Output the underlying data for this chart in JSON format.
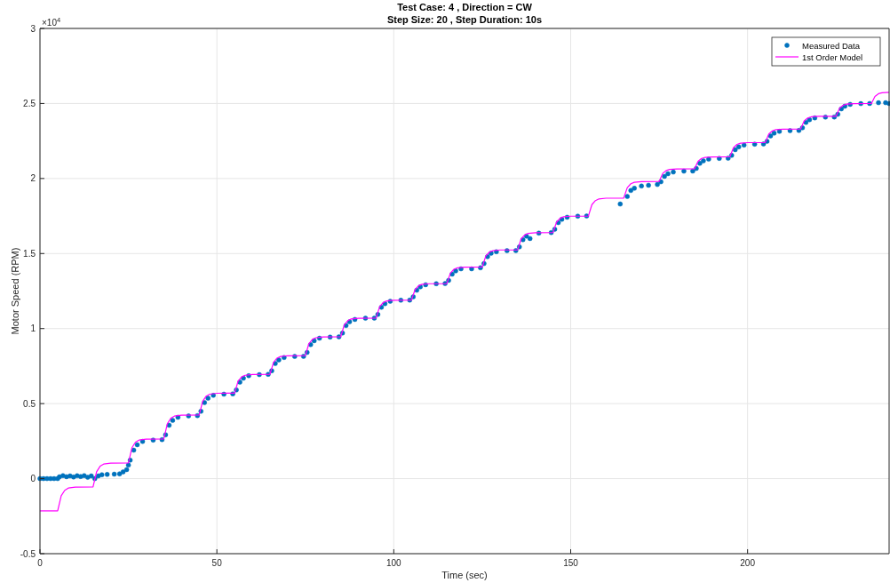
{
  "chart_data": {
    "type": "line",
    "title": "Test Case: 4 , Direction = CW",
    "subtitle": "Step Size: 20 , Step Duration: 10s",
    "xlabel": "Time (sec)",
    "ylabel": "Motor Speed (RPM)",
    "annotations": [
      "×10$^{4}$"
    ],
    "xlim": [
      0,
      240
    ],
    "xticks": [
      0,
      50,
      100,
      150,
      200
    ],
    "ylim": [
      -0.5,
      3
    ],
    "yticks": [
      -0.5,
      0,
      0.5,
      1,
      1.5,
      2,
      2.5,
      3
    ],
    "grid": true,
    "legend": "top right",
    "series": [
      {
        "name": "Measured Data",
        "type": "scatter",
        "marker": "circle",
        "color": "#0072bd",
        "x": [
          0,
          1,
          2,
          3,
          4,
          5,
          5.5,
          6.5,
          7.5,
          8.5,
          9.5,
          10.5,
          11.5,
          12.5,
          13.5,
          14.5,
          15.5,
          16.5,
          17.5,
          19,
          21,
          22.5,
          23.5,
          24.5,
          25,
          25.5,
          26.5,
          27.5,
          29,
          32,
          34.5,
          35.5,
          36.5,
          37.5,
          39,
          42,
          44.5,
          45.5,
          46.5,
          47.5,
          49,
          52,
          54.5,
          55.5,
          56.5,
          57.5,
          59,
          62,
          64.5,
          65.5,
          66.5,
          67.5,
          69,
          72,
          74.5,
          75.5,
          76.5,
          77.5,
          79,
          82,
          84.5,
          85.5,
          86.5,
          87.5,
          89,
          92,
          94.5,
          95.5,
          96.5,
          97.5,
          99,
          102,
          104.5,
          105.5,
          106.5,
          107.5,
          109,
          112,
          114.5,
          115.5,
          116.5,
          117.5,
          119,
          122,
          124.5,
          125.5,
          126.5,
          127.5,
          129,
          132,
          134.5,
          135.5,
          136.5,
          137.5,
          138.5,
          141,
          144.5,
          145.5,
          146.5,
          147.5,
          149,
          152,
          154.5,
          164,
          166,
          167,
          168,
          170,
          172,
          174.5,
          175.5,
          176.5,
          177.5,
          179,
          182,
          184.5,
          185.5,
          186.5,
          187.5,
          189,
          192,
          194.5,
          195.5,
          196.5,
          197.5,
          199,
          202,
          204.5,
          205.5,
          206.5,
          207.5,
          209,
          212,
          214.5,
          215.5,
          216.5,
          217.5,
          219,
          222,
          224.5,
          225.5,
          226.5,
          227.5,
          229,
          232,
          234.5,
          237,
          239,
          240
        ],
        "values": [
          0,
          0,
          0,
          0,
          0,
          0,
          0.012,
          0.02,
          0.013,
          0.018,
          0.011,
          0.019,
          0.014,
          0.02,
          0.009,
          0.018,
          0,
          0.018,
          0.026,
          0.028,
          0.03,
          0.032,
          0.045,
          0.06,
          0.09,
          0.123,
          0.19,
          0.226,
          0.248,
          0.257,
          0.26,
          0.292,
          0.356,
          0.388,
          0.409,
          0.418,
          0.42,
          0.449,
          0.507,
          0.536,
          0.555,
          0.563,
          0.565,
          0.591,
          0.643,
          0.669,
          0.686,
          0.693,
          0.695,
          0.719,
          0.767,
          0.791,
          0.807,
          0.814,
          0.815,
          0.841,
          0.893,
          0.919,
          0.936,
          0.943,
          0.945,
          0.97,
          1.02,
          1.045,
          1.061,
          1.069,
          1.07,
          1.094,
          1.142,
          1.166,
          1.182,
          1.189,
          1.19,
          1.212,
          1.256,
          1.278,
          1.292,
          1.299,
          1.3,
          1.321,
          1.363,
          1.384,
          1.398,
          1.398,
          1.405,
          1.433,
          1.479,
          1.502,
          1.512,
          1.519,
          1.52,
          1.544,
          1.592,
          1.616,
          1.6,
          1.636,
          1.64,
          1.662,
          1.706,
          1.728,
          1.742,
          1.749,
          1.75,
          1.83,
          1.88,
          1.92,
          1.935,
          1.95,
          1.955,
          1.96,
          1.978,
          2.014,
          2.032,
          2.043,
          2.049,
          2.05,
          2.067,
          2.101,
          2.118,
          2.129,
          2.134,
          2.135,
          2.154,
          2.192,
          2.211,
          2.223,
          2.229,
          2.23,
          2.248,
          2.284,
          2.302,
          2.314,
          2.319,
          2.32,
          2.338,
          2.374,
          2.392,
          2.404,
          2.409,
          2.41,
          2.428,
          2.464,
          2.482,
          2.494,
          2.499,
          2.5,
          2.505,
          2.505,
          2.5
        ]
      },
      {
        "name": "1st Order Model",
        "color": "#ff00ff",
        "x": [
          0,
          5,
          6,
          7,
          8,
          10,
          15,
          16,
          17,
          18,
          20,
          25,
          26,
          27,
          28,
          30,
          35,
          36,
          37,
          38,
          40,
          45,
          46,
          47,
          48,
          50,
          55,
          56,
          57,
          58,
          60,
          65,
          66,
          67,
          68,
          70,
          75,
          76,
          77,
          78,
          80,
          85,
          86,
          87,
          88,
          90,
          95,
          96,
          97,
          98,
          100,
          105,
          106,
          107,
          108,
          110,
          115,
          116,
          117,
          118,
          120,
          125,
          126,
          127,
          128,
          130,
          135,
          136,
          137,
          138,
          140,
          145,
          146,
          147,
          148,
          150,
          155,
          156,
          157,
          158,
          160,
          165,
          166,
          167,
          168,
          170,
          175,
          176,
          177,
          178,
          180,
          185,
          186,
          187,
          188,
          190,
          195,
          196,
          197,
          198,
          200,
          205,
          206,
          207,
          208,
          210,
          215,
          216,
          217,
          218,
          220,
          225,
          226,
          227,
          228,
          230,
          235,
          236,
          237,
          238,
          240
        ],
        "values": [
          -0.215,
          -0.215,
          -0.114,
          -0.078,
          -0.063,
          -0.057,
          -0.055,
          0.046,
          0.083,
          0.097,
          0.103,
          0.105,
          0.206,
          0.243,
          0.257,
          0.263,
          0.265,
          0.366,
          0.403,
          0.417,
          0.423,
          0.425,
          0.516,
          0.55,
          0.563,
          0.569,
          0.57,
          0.649,
          0.678,
          0.689,
          0.694,
          0.695,
          0.774,
          0.803,
          0.814,
          0.819,
          0.82,
          0.899,
          0.928,
          0.939,
          0.944,
          0.945,
          1.024,
          1.053,
          1.064,
          1.069,
          1.07,
          1.146,
          1.173,
          1.184,
          1.189,
          1.19,
          1.259,
          1.285,
          1.295,
          1.299,
          1.3,
          1.369,
          1.395,
          1.405,
          1.409,
          1.41,
          1.483,
          1.509,
          1.519,
          1.524,
          1.525,
          1.598,
          1.624,
          1.634,
          1.639,
          1.64,
          1.709,
          1.735,
          1.745,
          1.749,
          1.75,
          1.826,
          1.853,
          1.864,
          1.869,
          1.87,
          1.939,
          1.965,
          1.975,
          1.979,
          1.98,
          2.034,
          2.053,
          2.061,
          2.064,
          2.065,
          2.115,
          2.134,
          2.141,
          2.144,
          2.145,
          2.205,
          2.227,
          2.235,
          2.239,
          2.24,
          2.297,
          2.317,
          2.326,
          2.329,
          2.33,
          2.384,
          2.403,
          2.411,
          2.414,
          2.415,
          2.469,
          2.488,
          2.496,
          2.499,
          2.5,
          2.547,
          2.565,
          2.571,
          2.574
        ]
      }
    ]
  }
}
